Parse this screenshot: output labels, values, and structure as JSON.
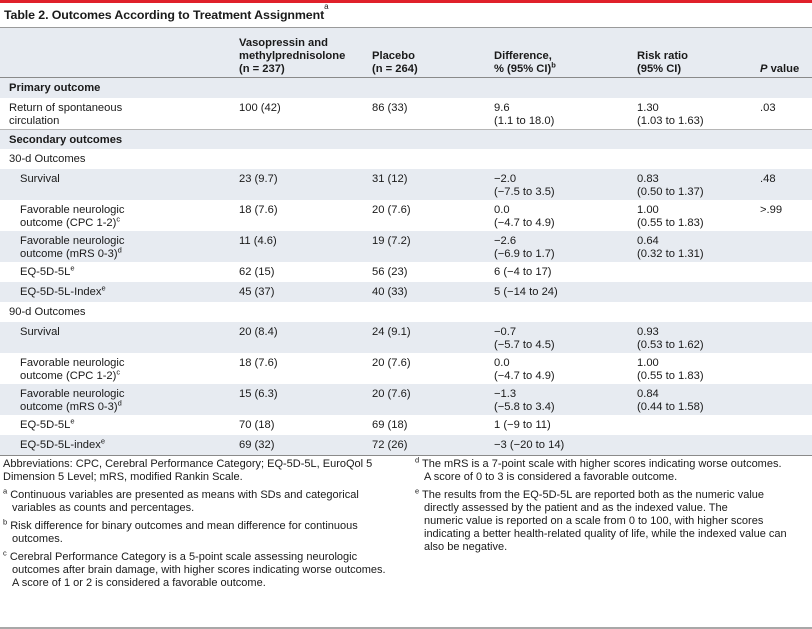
{
  "title": "Table 2. Outcomes According to Treatment Assignment",
  "title_mark": "a",
  "header": {
    "vaso": [
      "Vasopressin and",
      "methylprednisolone",
      "(n = 237)"
    ],
    "placebo": [
      "Placebo",
      "(n = 264)"
    ],
    "difference": [
      "Difference,",
      "% (95% CI)"
    ],
    "difference_mark": "b",
    "risk": [
      "Risk ratio",
      "(95% CI)"
    ],
    "p_italic": "P",
    "p_rest": " value"
  },
  "rows": [
    {
      "label": [
        "Primary outcome"
      ],
      "kind": "section",
      "shade": true
    },
    {
      "label": [
        "Return of spontaneous",
        "circulation"
      ],
      "vaso": "100 (42)",
      "placebo": "86 (33)",
      "diff": [
        "9.6",
        "(1.1 to 18.0)"
      ],
      "rr": [
        "1.30",
        "(1.03 to 1.63)"
      ],
      "p": ".03",
      "shade": false
    },
    {
      "label": [
        "Secondary outcomes"
      ],
      "kind": "section",
      "shade": true
    },
    {
      "label": [
        "30-d Outcomes"
      ],
      "kind": "sub",
      "shade": false
    },
    {
      "label": [
        "Survival"
      ],
      "indent": true,
      "vaso": "23 (9.7)",
      "placebo": "31 (12)",
      "diff": [
        "−2.0",
        "(−7.5 to 3.5)"
      ],
      "rr": [
        "0.83",
        "(0.50 to 1.37)"
      ],
      "p": ".48",
      "shade": true
    },
    {
      "label": [
        "Favorable neurologic",
        "outcome (CPC 1-2)"
      ],
      "mark": "c",
      "indent": true,
      "vaso": "18 (7.6)",
      "placebo": "20 (7.6)",
      "diff": [
        "0.0",
        "(−4.7 to 4.9)"
      ],
      "rr": [
        "1.00",
        "(0.55 to 1.83)"
      ],
      "p": ">.99",
      "shade": false
    },
    {
      "label": [
        "Favorable neurologic",
        "outcome (mRS 0-3)"
      ],
      "mark": "d",
      "indent": true,
      "vaso": "11 (4.6)",
      "placebo": "19 (7.2)",
      "diff": [
        "−2.6",
        "(−6.9 to 1.7)"
      ],
      "rr": [
        "0.64",
        "(0.32 to 1.31)"
      ],
      "p": "",
      "shade": true
    },
    {
      "label": [
        "EQ-5D-5L"
      ],
      "mark": "e",
      "indent": true,
      "vaso": "62 (15)",
      "placebo": "56 (23)",
      "diff": [
        "6 (−4 to 17)"
      ],
      "rr": [],
      "p": "",
      "shade": false
    },
    {
      "label": [
        "EQ-5D-5L-Index"
      ],
      "mark": "e",
      "indent": true,
      "vaso": "45 (37)",
      "placebo": "40 (33)",
      "diff": [
        "5 (−14 to 24)"
      ],
      "rr": [],
      "p": "",
      "shade": true
    },
    {
      "label": [
        "90-d Outcomes"
      ],
      "kind": "sub",
      "shade": false
    },
    {
      "label": [
        "Survival"
      ],
      "indent": true,
      "vaso": "20 (8.4)",
      "placebo": "24 (9.1)",
      "diff": [
        "−0.7",
        "(−5.7 to 4.5)"
      ],
      "rr": [
        "0.93",
        "(0.53 to 1.62)"
      ],
      "p": "",
      "shade": true
    },
    {
      "label": [
        "Favorable neurologic",
        "outcome (CPC 1-2)"
      ],
      "mark": "c",
      "indent": true,
      "vaso": "18 (7.6)",
      "placebo": "20 (7.6)",
      "diff": [
        "0.0",
        "(−4.7 to 4.9)"
      ],
      "rr": [
        "1.00",
        "(0.55 to 1.83)"
      ],
      "p": "",
      "shade": false
    },
    {
      "label": [
        "Favorable neurologic",
        "outcome (mRS 0-3)"
      ],
      "mark": "d",
      "indent": true,
      "vaso": "15 (6.3)",
      "placebo": "20 (7.6)",
      "diff": [
        "−1.3",
        "(−5.8 to 3.4)"
      ],
      "rr": [
        "0.84",
        "(0.44 to 1.58)"
      ],
      "p": "",
      "shade": true
    },
    {
      "label": [
        "EQ-5D-5L"
      ],
      "mark": "e",
      "indent": true,
      "vaso": "70 (18)",
      "placebo": "69 (18)",
      "diff": [
        "1 (−9 to 11)"
      ],
      "rr": [],
      "p": "",
      "shade": false
    },
    {
      "label": [
        "EQ-5D-5L-index"
      ],
      "mark": "e",
      "indent": true,
      "vaso": "69 (32)",
      "placebo": "72 (26)",
      "diff": [
        "−3 (−20 to 14)"
      ],
      "rr": [],
      "p": "",
      "shade": true
    }
  ],
  "footnotes_left": [
    {
      "mark": "",
      "lines": [
        "Abbreviations: CPC, Cerebral Performance Category; EQ-5D-5L, EuroQol 5",
        "Dimension 5 Level; mRS, modified Rankin Scale."
      ]
    },
    {
      "mark": "a",
      "lines": [
        "Continuous variables are presented as means with SDs and categorical",
        "variables as counts and percentages."
      ]
    },
    {
      "mark": "b",
      "lines": [
        "Risk difference for binary outcomes and mean difference for continuous",
        "outcomes."
      ]
    },
    {
      "mark": "c",
      "lines": [
        "Cerebral Performance Category is a 5-point scale assessing neurologic",
        "outcomes after brain damage, with higher scores indicating worse outcomes.",
        "A score of 1 or 2 is considered a favorable outcome."
      ]
    }
  ],
  "footnotes_right": [
    {
      "mark": "d",
      "lines": [
        "The mRS is a 7-point scale with higher scores indicating worse outcomes.",
        "A score of 0 to 3 is considered a favorable outcome."
      ]
    },
    {
      "mark": "e",
      "lines": [
        "The results from the EQ-5D-5L are reported both as the numeric value",
        "directly assessed by the patient and as the indexed value. The",
        "numeric value is reported on a scale from 0 to 100, with higher scores",
        "indicating a better health-related quality of life, while the indexed value can",
        "also be negative."
      ]
    }
  ],
  "colors": {
    "accent_red": "#e0202a",
    "row_shade": "#e7ebf1"
  }
}
